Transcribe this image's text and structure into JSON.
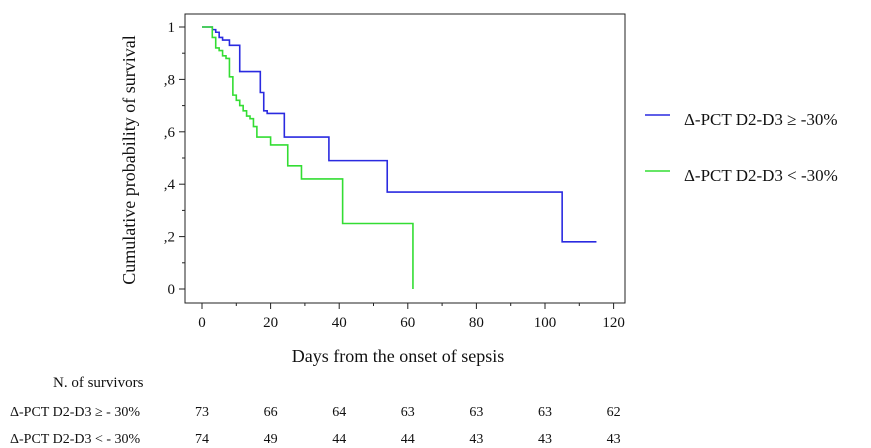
{
  "chart_data": {
    "type": "line",
    "ylabel": "Cumulative probability of survival",
    "xlabel": "Days from the onset of sepsis",
    "xlim": [
      0,
      120
    ],
    "ylim": [
      0,
      1
    ],
    "x_ticks": [
      0,
      20,
      40,
      60,
      80,
      100,
      120
    ],
    "x_tick_labels": [
      "0",
      "20",
      "40",
      "60",
      "80",
      "100",
      "120"
    ],
    "y_ticks": [
      0,
      0.2,
      0.4,
      0.6,
      0.8,
      1
    ],
    "y_tick_labels": [
      "0",
      ",2",
      ",4",
      ",6",
      ",8",
      "1"
    ],
    "step": true,
    "grid": false,
    "legend_position": "right",
    "series": [
      {
        "name": "Δ-PCT D2-D3 ≥ -30%",
        "color": "#2a2ae0",
        "x": [
          0,
          3,
          4,
          5,
          6,
          8,
          11,
          17,
          18,
          19,
          24,
          37,
          54,
          105,
          115
        ],
        "y": [
          1,
          0.99,
          0.98,
          0.96,
          0.95,
          0.93,
          0.83,
          0.75,
          0.68,
          0.67,
          0.58,
          0.49,
          0.37,
          0.18,
          0.18
        ]
      },
      {
        "name": "Δ-PCT D2-D3 < -30%",
        "color": "#33dd33",
        "x": [
          0,
          3,
          4,
          5,
          6,
          7,
          8,
          9,
          10,
          11,
          12,
          13,
          14,
          15,
          16,
          20,
          25,
          29,
          41,
          61.5
        ],
        "y": [
          1,
          0.96,
          0.92,
          0.91,
          0.89,
          0.88,
          0.81,
          0.74,
          0.72,
          0.7,
          0.68,
          0.66,
          0.65,
          0.62,
          0.58,
          0.55,
          0.47,
          0.42,
          0.25,
          0
        ]
      }
    ]
  },
  "risk_table": {
    "title": "N. of survivors",
    "rows": [
      {
        "label": "Δ-PCT  D2-D3 ≥ - 30%",
        "values": [
          "73",
          "66",
          "64",
          "63",
          "63",
          "63",
          "62"
        ]
      },
      {
        "label": "Δ-PCT  D2-D3 < - 30%",
        "values": [
          "74",
          "49",
          "44",
          "44",
          "43",
          "43",
          "43"
        ]
      }
    ]
  }
}
